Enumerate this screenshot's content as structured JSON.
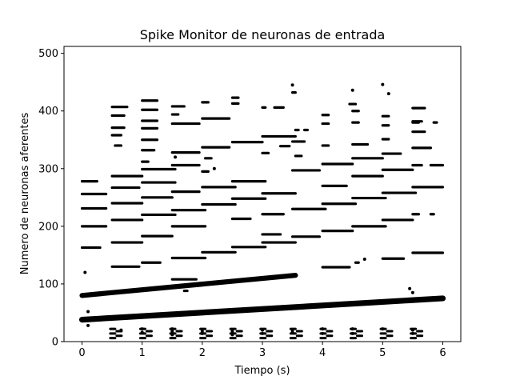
{
  "chart_data": {
    "type": "scatter",
    "title": "Spike Monitor de neuronas de entrada",
    "xlabel": "Tiempo (s)",
    "ylabel": "Numero de neuronas aferentes",
    "xlim": [
      -0.3,
      6.3
    ],
    "ylim": [
      0,
      512
    ],
    "xticks": [
      "0",
      "1",
      "2",
      "3",
      "4",
      "5",
      "6"
    ],
    "yticks": [
      "0",
      "100",
      "200",
      "300",
      "400",
      "500"
    ],
    "grid": false,
    "marker_color": "#000000",
    "series": [
      {
        "bands": [
          {
            "x0": 0.0,
            "x1": 6.0,
            "y0": 38,
            "y1": 75,
            "thickness": 3.0
          },
          {
            "x0": 0.0,
            "x1": 3.55,
            "y0": 80,
            "y1": 115,
            "thickness": 2.6
          }
        ],
        "segments": [
          [
            0.0,
            0.25,
            278
          ],
          [
            0.0,
            0.4,
            256
          ],
          [
            0.0,
            0.4,
            231
          ],
          [
            0.0,
            0.4,
            200
          ],
          [
            0.0,
            0.3,
            163
          ],
          [
            0.5,
            0.75,
            407
          ],
          [
            0.5,
            0.7,
            392
          ],
          [
            0.5,
            0.7,
            371
          ],
          [
            0.5,
            0.65,
            358
          ],
          [
            0.55,
            0.65,
            340
          ],
          [
            0.5,
            1.0,
            287
          ],
          [
            0.5,
            0.95,
            267
          ],
          [
            0.5,
            1.0,
            240
          ],
          [
            0.5,
            1.0,
            211
          ],
          [
            0.5,
            1.0,
            172
          ],
          [
            0.5,
            0.95,
            130
          ],
          [
            1.0,
            1.25,
            418
          ],
          [
            1.0,
            1.25,
            402
          ],
          [
            1.0,
            1.25,
            383
          ],
          [
            1.0,
            1.25,
            370
          ],
          [
            1.0,
            1.25,
            350
          ],
          [
            1.0,
            1.2,
            332
          ],
          [
            1.0,
            1.1,
            312
          ],
          [
            1.0,
            1.55,
            299
          ],
          [
            1.0,
            1.55,
            276
          ],
          [
            1.0,
            1.5,
            250
          ],
          [
            1.0,
            1.55,
            220
          ],
          [
            1.0,
            1.5,
            183
          ],
          [
            1.0,
            1.3,
            137
          ],
          [
            1.5,
            1.7,
            408
          ],
          [
            1.5,
            1.6,
            394
          ],
          [
            1.5,
            1.95,
            378
          ],
          [
            1.5,
            1.95,
            328
          ],
          [
            1.5,
            1.95,
            306
          ],
          [
            1.5,
            1.95,
            260
          ],
          [
            1.5,
            2.05,
            228
          ],
          [
            1.5,
            2.05,
            200
          ],
          [
            1.5,
            2.05,
            145
          ],
          [
            1.7,
            1.75,
            88
          ],
          [
            1.5,
            1.9,
            108
          ],
          [
            2.0,
            2.45,
            387
          ],
          [
            2.0,
            2.45,
            337
          ],
          [
            2.0,
            2.55,
            268
          ],
          [
            2.0,
            2.55,
            238
          ],
          [
            2.0,
            2.55,
            155
          ],
          [
            2.0,
            2.1,
            415
          ],
          [
            2.05,
            2.15,
            318
          ],
          [
            2.0,
            2.1,
            295
          ],
          [
            2.5,
            3.0,
            346
          ],
          [
            2.5,
            3.05,
            278
          ],
          [
            2.5,
            3.05,
            248
          ],
          [
            2.5,
            2.8,
            213
          ],
          [
            2.5,
            3.05,
            164
          ],
          [
            2.5,
            2.6,
            423
          ],
          [
            2.5,
            2.6,
            413
          ],
          [
            3.0,
            3.55,
            356
          ],
          [
            3.0,
            3.55,
            257
          ],
          [
            3.0,
            3.55,
            172
          ],
          [
            3.0,
            3.35,
            221
          ],
          [
            3.0,
            3.1,
            327
          ],
          [
            3.0,
            3.05,
            406
          ],
          [
            3.2,
            3.35,
            406
          ],
          [
            3.0,
            3.3,
            186
          ],
          [
            3.3,
            3.45,
            339
          ],
          [
            3.5,
            3.55,
            432
          ],
          [
            3.5,
            3.95,
            297
          ],
          [
            3.5,
            4.05,
            230
          ],
          [
            3.5,
            3.95,
            182
          ],
          [
            3.5,
            3.7,
            347
          ],
          [
            3.55,
            3.6,
            367
          ],
          [
            3.7,
            3.75,
            367
          ],
          [
            3.55,
            3.65,
            322
          ],
          [
            4.0,
            4.5,
            308
          ],
          [
            4.0,
            4.55,
            239
          ],
          [
            4.0,
            4.5,
            192
          ],
          [
            4.0,
            4.4,
            270
          ],
          [
            4.0,
            4.45,
            129
          ],
          [
            4.0,
            4.1,
            393
          ],
          [
            4.0,
            4.1,
            378
          ],
          [
            4.0,
            4.1,
            340
          ],
          [
            4.5,
            5.0,
            318
          ],
          [
            4.5,
            5.0,
            287
          ],
          [
            4.5,
            5.05,
            249
          ],
          [
            4.5,
            5.05,
            200
          ],
          [
            4.5,
            4.75,
            342
          ],
          [
            4.5,
            4.6,
            400
          ],
          [
            4.5,
            4.6,
            380
          ],
          [
            4.45,
            4.55,
            412
          ],
          [
            4.55,
            4.6,
            137
          ],
          [
            5.0,
            5.5,
            298
          ],
          [
            5.0,
            5.55,
            258
          ],
          [
            5.0,
            5.5,
            211
          ],
          [
            5.0,
            5.3,
            326
          ],
          [
            5.0,
            5.35,
            144
          ],
          [
            5.0,
            5.1,
            391
          ],
          [
            5.0,
            5.1,
            375
          ],
          [
            5.0,
            5.1,
            351
          ],
          [
            5.5,
            6.0,
            268
          ],
          [
            5.5,
            6.0,
            154
          ],
          [
            5.5,
            5.8,
            336
          ],
          [
            5.5,
            5.65,
            382
          ],
          [
            5.5,
            5.7,
            364
          ],
          [
            5.5,
            5.65,
            306
          ],
          [
            5.8,
            6.0,
            306
          ],
          [
            5.5,
            5.6,
            221
          ],
          [
            5.8,
            5.85,
            221
          ],
          [
            5.5,
            5.7,
            405
          ],
          [
            5.5,
            5.6,
            380
          ],
          [
            5.85,
            5.9,
            380
          ]
        ],
        "dots": [
          [
            0.05,
            120
          ],
          [
            0.1,
            52
          ],
          [
            0.1,
            28
          ],
          [
            0.65,
            20
          ],
          [
            1.0,
            22
          ],
          [
            1.0,
            16
          ],
          [
            1.5,
            22
          ],
          [
            1.5,
            18
          ],
          [
            1.5,
            12
          ],
          [
            2.0,
            18
          ],
          [
            2.0,
            14
          ],
          [
            2.5,
            18
          ],
          [
            2.5,
            12
          ],
          [
            3.0,
            20
          ],
          [
            3.0,
            14
          ],
          [
            3.5,
            20
          ],
          [
            3.5,
            16
          ],
          [
            3.5,
            445
          ],
          [
            4.0,
            22
          ],
          [
            4.0,
            14
          ],
          [
            4.5,
            22
          ],
          [
            4.5,
            14
          ],
          [
            4.5,
            436
          ],
          [
            5.0,
            22
          ],
          [
            5.0,
            446
          ],
          [
            5.1,
            430
          ],
          [
            5.5,
            20
          ],
          [
            5.5,
            14
          ],
          [
            5.45,
            92
          ],
          [
            5.5,
            85
          ],
          [
            2.2,
            300
          ],
          [
            4.7,
            143
          ],
          [
            1.55,
            320
          ]
        ],
        "clusters": [
          0.55,
          1.05,
          1.55,
          2.05,
          2.55,
          3.05,
          3.55,
          4.05,
          4.55,
          5.05,
          5.55
        ]
      }
    ]
  }
}
